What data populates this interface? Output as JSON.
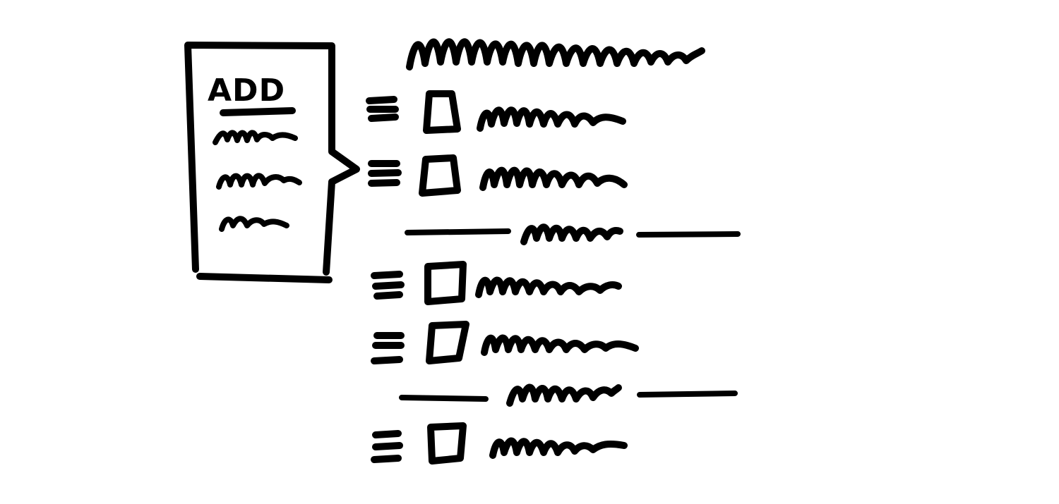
{
  "colors": {
    "ink": "#000000",
    "background": "#ffffff"
  },
  "popover": {
    "title": "ADD",
    "option_icon": "squiggle-placeholder-text"
  },
  "list": {
    "header_icon": "squiggle-placeholder-text",
    "item_icons": {
      "handle": "drag-handle-icon",
      "checkbox": "checkbox-icon",
      "label": "squiggle-placeholder-text"
    },
    "checkbox_states": [
      "unchecked",
      "unchecked",
      "unchecked",
      "unchecked",
      "unchecked"
    ]
  }
}
